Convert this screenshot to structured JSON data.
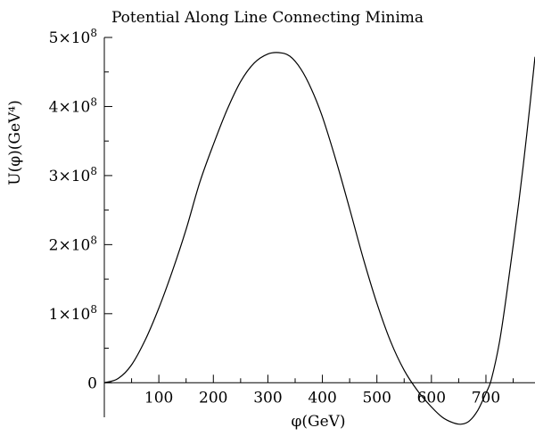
{
  "chart_data": {
    "type": "line",
    "title": "Potential Along Line Connecting Minima",
    "xlabel": "φ(GeV)",
    "ylabel": "U(φ)(GeV⁴)",
    "xlim": [
      0,
      790
    ],
    "ylim": [
      -50000000.0,
      500000000.0
    ],
    "xticks": [
      100,
      200,
      300,
      400,
      500,
      600,
      700
    ],
    "xtick_labels": [
      "100",
      "200",
      "300",
      "400",
      "500",
      "600",
      "700"
    ],
    "yticks": [
      0,
      100000000,
      200000000,
      300000000,
      400000000,
      500000000
    ],
    "ytick_labels": [
      {
        "mant": "0",
        "exp": ""
      },
      {
        "mant": "1×10",
        "exp": "8"
      },
      {
        "mant": "2×10",
        "exp": "8"
      },
      {
        "mant": "3×10",
        "exp": "8"
      },
      {
        "mant": "4×10",
        "exp": "8"
      },
      {
        "mant": "5×10",
        "exp": "8"
      }
    ],
    "grid": false,
    "series": [
      {
        "x": [
          0,
          25,
          50,
          75,
          100,
          125,
          150,
          175,
          200,
          225,
          250,
          275,
          300,
          320,
          340,
          360,
          380,
          400,
          425,
          450,
          475,
          500,
          525,
          550,
          575,
          600,
          620,
          640,
          655,
          670,
          685,
          700,
          710,
          725,
          740,
          760,
          775,
          790
        ],
        "y": [
          0,
          6000000,
          26000000,
          62000000,
          108000000,
          162000000,
          222000000,
          290000000,
          345000000,
          395000000,
          436000000,
          463000000,
          476000000,
          478000000,
          473000000,
          455000000,
          425000000,
          385000000,
          322000000,
          252000000,
          180000000,
          115000000,
          60000000,
          18000000,
          -12000000,
          -35000000,
          -50000000,
          -58000000,
          -60000000,
          -55000000,
          -40000000,
          -15000000,
          5000000,
          60000000,
          140000000,
          260000000,
          360000000,
          472000000
        ]
      }
    ]
  }
}
